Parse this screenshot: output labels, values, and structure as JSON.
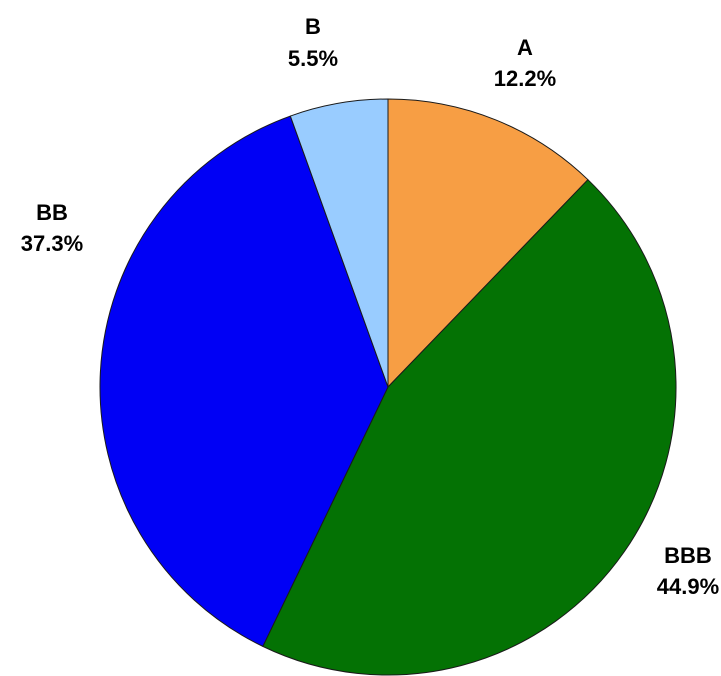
{
  "chart_data": {
    "type": "pie",
    "title": "",
    "start_angle_deg": 0,
    "direction": "clockwise",
    "slices": [
      {
        "label": "A",
        "value": 12.2,
        "value_label": "12.2%",
        "color": "#F79E44"
      },
      {
        "label": "BBB",
        "value": 44.9,
        "value_label": "44.9%",
        "color": "#047204"
      },
      {
        "label": "BB",
        "value": 37.3,
        "value_label": "37.3%",
        "color": "#0000F5"
      },
      {
        "label": "B",
        "value": 5.5,
        "value_label": "5.5%",
        "color": "#99CCFF"
      }
    ]
  }
}
